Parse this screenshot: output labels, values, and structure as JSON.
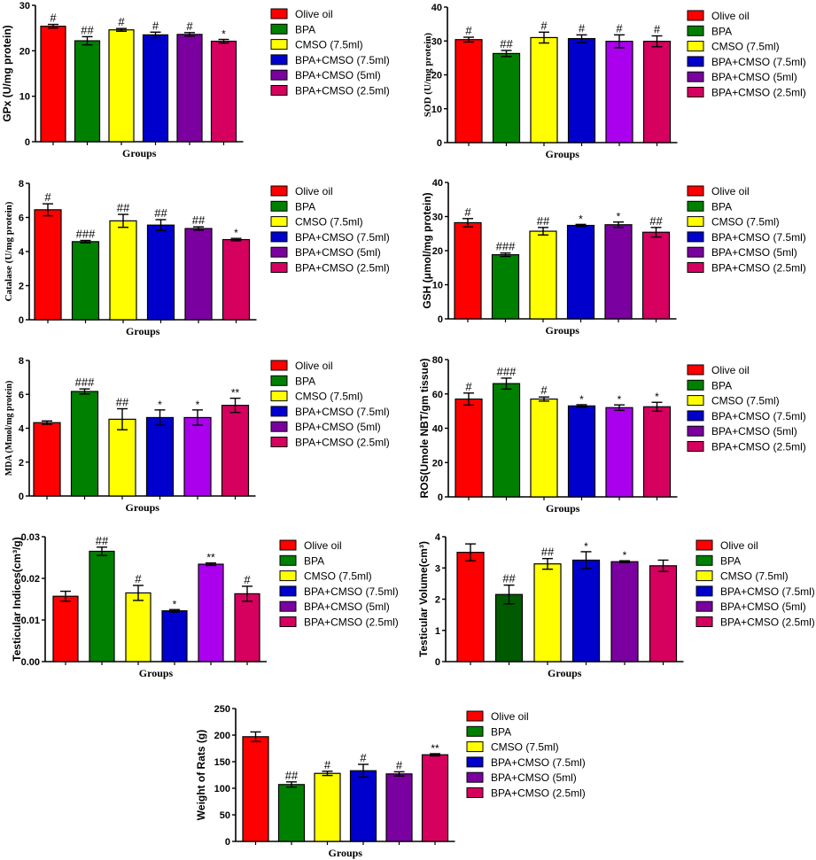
{
  "legend_colors": [
    "#ff0000",
    "#008000",
    "#ffff00",
    "#0000cc",
    "#7b00a0",
    "#d6005f"
  ],
  "chart_data": [
    {
      "type": "bar",
      "ylabel": "GPx (U/mg protein)",
      "xlabel": "Groups",
      "ylim": [
        0,
        30
      ],
      "ticks": [
        0,
        10,
        20,
        30
      ],
      "categories": [
        "Olive oil",
        "BPA",
        "CMSO (7.5ml)",
        "BPA+CMSO (7.5ml)",
        "BPA+CMSO (5ml)",
        "BPA+CMSO (2.5ml)"
      ],
      "values": [
        25.4,
        22.2,
        24.6,
        23.5,
        23.6,
        22.1
      ],
      "errors": [
        0.4,
        0.9,
        0.3,
        0.6,
        0.4,
        0.4
      ],
      "annotations": [
        "#",
        "##",
        "#",
        "#",
        "#",
        "*"
      ],
      "colors": [
        "#ff0000",
        "#008000",
        "#ffff00",
        "#0000cc",
        "#7b00a0",
        "#d6005f"
      ]
    },
    {
      "type": "bar",
      "ylabel": "SOD (U/mg protein)",
      "xlabel": "Groups",
      "ylim": [
        0,
        40
      ],
      "ticks": [
        0,
        10,
        20,
        30,
        40
      ],
      "categories": [
        "Olive oil",
        "BPA",
        "CMSO (7.5ml)",
        "BPA+CMSO (7.5ml)",
        "BPA+CMSO (5ml)",
        "BPA+CMSO (2.5ml)"
      ],
      "values": [
        30.4,
        26.3,
        31.0,
        30.7,
        29.9,
        29.9
      ],
      "errors": [
        0.7,
        0.9,
        1.6,
        1.1,
        1.9,
        1.6
      ],
      "annotations": [
        "#",
        "##",
        "#",
        "#",
        "#",
        "#"
      ],
      "colors": [
        "#ff0000",
        "#008000",
        "#ffff00",
        "#0000cc",
        "#aa00ee",
        "#d6005f"
      ]
    },
    {
      "type": "bar",
      "ylabel": "Catalase (U/mg protein)",
      "xlabel": "Groups",
      "ylim": [
        0,
        8
      ],
      "ticks": [
        0,
        2,
        4,
        6,
        8
      ],
      "categories": [
        "Olive oil",
        "BPA",
        "CMSO (7.5ml)",
        "BPA+CMSO (7.5ml)",
        "BPA+CMSO (5ml)",
        "BPA+CMSO (2.5ml)"
      ],
      "values": [
        6.45,
        4.58,
        5.8,
        5.55,
        5.35,
        4.7
      ],
      "errors": [
        0.35,
        0.07,
        0.38,
        0.32,
        0.1,
        0.07
      ],
      "annotations": [
        "#",
        "###",
        "##",
        "##",
        "##",
        "*"
      ],
      "colors": [
        "#ff0000",
        "#008000",
        "#ffff00",
        "#0000cc",
        "#7b00a0",
        "#d6005f"
      ]
    },
    {
      "type": "bar",
      "ylabel": "GSH (μmol/mg protein)",
      "xlabel": "Groups",
      "ylim": [
        0,
        40
      ],
      "ticks": [
        0,
        10,
        20,
        30,
        40
      ],
      "categories": [
        "Olive oil",
        "BPA",
        "CMSO (7.5ml)",
        "BPA+CMSO (7.5ml)",
        "BPA+CMSO (5ml)",
        "BPA+CMSO (2.5ml)"
      ],
      "values": [
        28.2,
        18.8,
        25.7,
        27.4,
        27.6,
        25.4
      ],
      "errors": [
        1.2,
        0.5,
        1.1,
        0.3,
        0.8,
        1.4
      ],
      "annotations": [
        "#",
        "###",
        "##",
        "*",
        "*",
        "##"
      ],
      "colors": [
        "#ff0000",
        "#008000",
        "#ffff00",
        "#0000cc",
        "#7b00a0",
        "#d6005f"
      ]
    },
    {
      "type": "bar",
      "ylabel": "MDA (Mmol/mg protein)",
      "xlabel": "Groups",
      "ylim": [
        0,
        8
      ],
      "ticks": [
        0,
        2,
        4,
        6,
        8
      ],
      "categories": [
        "Olive oil",
        "BPA",
        "CMSO (7.5ml)",
        "BPA+CMSO (7.5ml)",
        "BPA+CMSO (5ml)",
        "BPA+CMSO (2.5ml)"
      ],
      "values": [
        4.33,
        6.17,
        4.53,
        4.63,
        4.63,
        5.35
      ],
      "errors": [
        0.1,
        0.15,
        0.62,
        0.45,
        0.45,
        0.42
      ],
      "annotations": [
        "",
        "###",
        "##",
        "*",
        "*",
        "**"
      ],
      "colors": [
        "#ff0000",
        "#008000",
        "#ffff00",
        "#0000cc",
        "#aa00ee",
        "#d6005f"
      ]
    },
    {
      "type": "bar",
      "ylabel": "ROS(Umole NBT/gm tissue)",
      "xlabel": "Groups",
      "ylim": [
        0,
        80
      ],
      "ticks": [
        0,
        20,
        40,
        60,
        80
      ],
      "categories": [
        "Olive oil",
        "BPA",
        "CMSO (7.5ml)",
        "BPA+CMSO (7.5ml)",
        "BPA+CMSO (5ml)",
        "BPA+CMSO (2.5ml)"
      ],
      "values": [
        57.0,
        66.0,
        57.0,
        53.0,
        52.0,
        52.5
      ],
      "errors": [
        3.5,
        3.2,
        1.2,
        0.7,
        1.6,
        2.6
      ],
      "annotations": [
        "#",
        "###",
        "#",
        "*",
        "*",
        "*"
      ],
      "colors": [
        "#ff0000",
        "#008000",
        "#ffff00",
        "#0000cc",
        "#aa00ee",
        "#d6005f"
      ]
    },
    {
      "type": "bar",
      "ylabel": "Testicular Indices(cm³/g)",
      "xlabel": "Groups",
      "ylim": [
        0,
        0.03
      ],
      "ticks": [
        "0.00",
        "0.01",
        "0.02",
        "0.03"
      ],
      "tick_values": [
        0,
        0.01,
        0.02,
        0.03
      ],
      "categories": [
        "Olive oil",
        "BPA",
        "CMSO (7.5ml)",
        "BPA+CMSO (7.5ml)",
        "BPA+CMSO (5ml)",
        "BPA+CMSO (2.5ml)"
      ],
      "values": [
        0.0157,
        0.0265,
        0.0165,
        0.0122,
        0.0234,
        0.0163
      ],
      "errors": [
        0.0012,
        0.001,
        0.0018,
        0.0003,
        0.0003,
        0.0018
      ],
      "annotations": [
        "",
        "##",
        "#",
        "*",
        "**",
        "#"
      ],
      "colors": [
        "#ff0000",
        "#008000",
        "#ffff00",
        "#0000cc",
        "#aa00ee",
        "#d6005f"
      ]
    },
    {
      "type": "bar",
      "ylabel": "Testicular Volume(cm³)",
      "xlabel": "Groups",
      "ylim": [
        0,
        4
      ],
      "ticks": [
        0,
        1,
        2,
        3,
        4
      ],
      "categories": [
        "Olive oil",
        "BPA",
        "CMSO (7.5ml)",
        "BPA+CMSO (7.5ml)",
        "BPA+CMSO (5ml)",
        "BPA+CMSO (2.5ml)"
      ],
      "values": [
        3.5,
        2.15,
        3.13,
        3.25,
        3.2,
        3.07
      ],
      "errors": [
        0.27,
        0.3,
        0.17,
        0.27,
        0.03,
        0.18
      ],
      "annotations": [
        "",
        "##",
        "##",
        "*",
        "*",
        ""
      ],
      "colors": [
        "#ff0000",
        "#005a00",
        "#ffff00",
        "#0000cc",
        "#7b00a0",
        "#d6005f"
      ]
    },
    {
      "type": "bar",
      "ylabel": "Weight of Rats (g)",
      "xlabel": "Groups",
      "ylim": [
        0,
        250
      ],
      "ticks": [
        0,
        50,
        100,
        150,
        200,
        250
      ],
      "categories": [
        "Olive oil",
        "BPA",
        "CMSO (7.5ml)",
        "BPA+CMSO (7.5ml)",
        "BPA+CMSO (5ml)",
        "BPA+CMSO (2.5ml)"
      ],
      "values": [
        197,
        107,
        128,
        133,
        127,
        163
      ],
      "errors": [
        9,
        5,
        4,
        12,
        4,
        2
      ],
      "annotations": [
        "",
        "##",
        "#",
        "#",
        "#",
        "**"
      ],
      "colors": [
        "#ff0000",
        "#008000",
        "#ffff00",
        "#0000cc",
        "#7b00a0",
        "#d6005f"
      ]
    }
  ]
}
